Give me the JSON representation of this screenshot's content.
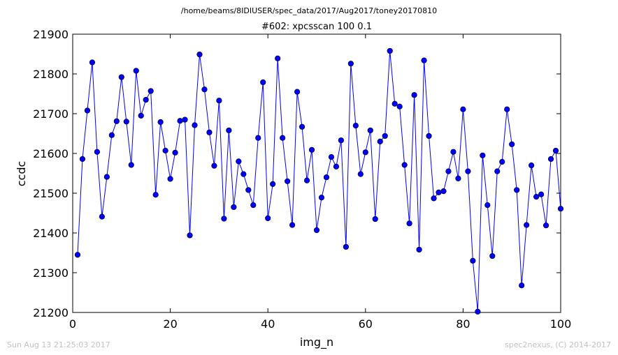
{
  "header": {
    "path": "/home/beams/8IDIUSER/spec_data/2017/Aug2017/toney20170810"
  },
  "footer": {
    "timestamp": "Sun Aug 13 21:25:03 2017",
    "credit": "spec2nexus, (C) 2014-2017"
  },
  "chart_data": {
    "type": "line",
    "title": "#602: xpcsscan 100 0.1",
    "xlabel": "img_n",
    "ylabel": "ccdc",
    "xlim": [
      0,
      100
    ],
    "ylim": [
      21200,
      21900
    ],
    "xticks": [
      "0",
      "20",
      "40",
      "60",
      "80",
      "100"
    ],
    "yticks": [
      "21200",
      "21300",
      "21400",
      "21500",
      "21600",
      "21700",
      "21800",
      "21900"
    ],
    "grid": false,
    "line_color": "#0000ff",
    "marker": "circle",
    "x": [
      1,
      2,
      3,
      4,
      5,
      6,
      7,
      8,
      9,
      10,
      11,
      12,
      13,
      14,
      15,
      16,
      17,
      18,
      19,
      20,
      21,
      22,
      23,
      24,
      25,
      26,
      27,
      28,
      29,
      30,
      31,
      32,
      33,
      34,
      35,
      36,
      37,
      38,
      39,
      40,
      41,
      42,
      43,
      44,
      45,
      46,
      47,
      48,
      49,
      50,
      51,
      52,
      53,
      54,
      55,
      56,
      57,
      58,
      59,
      60,
      61,
      62,
      63,
      64,
      65,
      66,
      67,
      68,
      69,
      70,
      71,
      72,
      73,
      74,
      75,
      76,
      77,
      78,
      79,
      80,
      81,
      82,
      83,
      84,
      85,
      86,
      87,
      88,
      89,
      90,
      91,
      92,
      93,
      94,
      95,
      96,
      97,
      98,
      99,
      100
    ],
    "y": [
      21345,
      21586,
      21708,
      21829,
      21604,
      21441,
      21541,
      21646,
      21681,
      21792,
      21680,
      21571,
      21808,
      21695,
      21735,
      21757,
      21496,
      21679,
      21607,
      21536,
      21602,
      21682,
      21685,
      21394,
      21671,
      21849,
      21761,
      21653,
      21569,
      21733,
      21436,
      21658,
      21465,
      21580,
      21548,
      21508,
      21470,
      21639,
      21779,
      21437,
      21523,
      21839,
      21639,
      21530,
      21420,
      21755,
      21667,
      21532,
      21609,
      21407,
      21489,
      21540,
      21591,
      21567,
      21633,
      21365,
      21826,
      21670,
      21548,
      21603,
      21658,
      21435,
      21630,
      21644,
      21858,
      21725,
      21718,
      21571,
      21424,
      21747,
      21358,
      21834,
      21644,
      21487,
      21502,
      21505,
      21555,
      21604,
      21537,
      21711,
      21555,
      21330,
      21202,
      21595,
      21470,
      21342,
      21555,
      21579,
      21711,
      21623,
      21508,
      21268,
      21420,
      21570,
      21491,
      21497,
      21419,
      21586,
      21607,
      21461
    ]
  }
}
